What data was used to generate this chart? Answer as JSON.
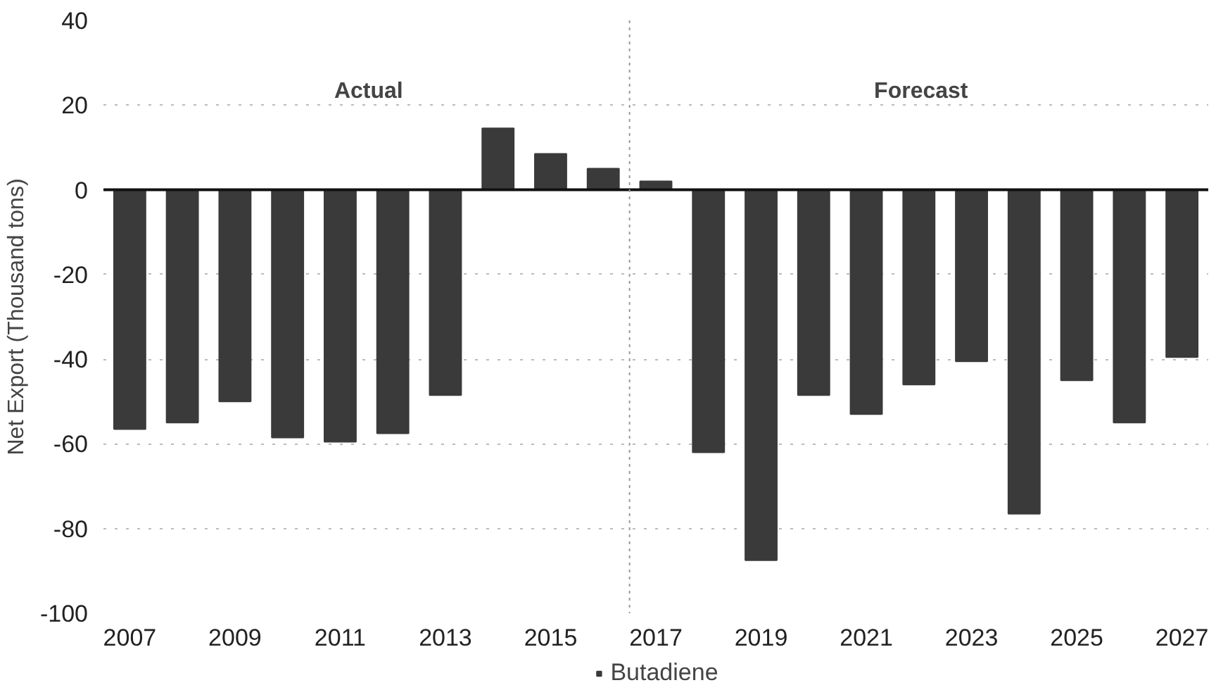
{
  "chart_data": {
    "type": "bar",
    "ylabel": "Net Export (Thousand tons)",
    "x": [
      2007,
      2008,
      2009,
      2010,
      2011,
      2012,
      2013,
      2014,
      2015,
      2016,
      2017,
      2018,
      2019,
      2020,
      2021,
      2022,
      2023,
      2024,
      2025,
      2026,
      2027
    ],
    "series": [
      {
        "name": "Butadiene",
        "color": "#3a3a3a",
        "values": [
          -56.5,
          -55,
          -50,
          -58.5,
          -59.5,
          -57.5,
          -48.5,
          14.5,
          8.5,
          5,
          2,
          -62,
          -87.5,
          -48.5,
          -53,
          -46,
          -40.5,
          -76.5,
          -45,
          -55,
          -39.5
        ]
      }
    ],
    "xlim": [
      2006.5,
      2027.5
    ],
    "xticks": [
      2007,
      2009,
      2011,
      2013,
      2015,
      2017,
      2019,
      2021,
      2023,
      2025,
      2027
    ],
    "ylim": [
      -100,
      40
    ],
    "yticks": [
      -100,
      -80,
      -60,
      -40,
      -20,
      0,
      20,
      40
    ],
    "ref_lines": [
      {
        "axis": "x",
        "value": 2016.5,
        "color": "#999999",
        "line_style": "dotted"
      }
    ],
    "annotations": [
      "Actual",
      "Forecast"
    ],
    "grid": "y",
    "legend": "bottom"
  }
}
